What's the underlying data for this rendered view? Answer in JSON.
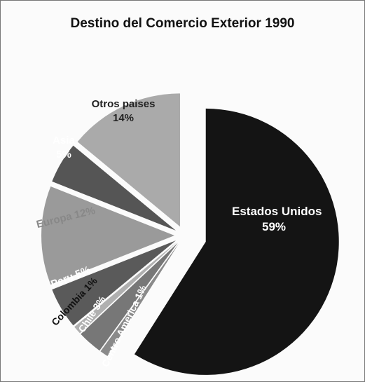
{
  "chart_data": {
    "type": "pie",
    "title": "Destino del Comercio Exterior 1990",
    "categories": [
      "Estados Unidos",
      "Centro America",
      "Chile",
      "Colombia",
      "Peru",
      "Europa",
      "Asia",
      "Otros paises"
    ],
    "values": [
      59,
      1,
      3,
      1,
      5,
      12,
      5,
      14
    ],
    "value_labels": [
      "59%",
      "1%",
      "3%",
      "1%",
      "5%",
      "12%",
      "5%",
      "14%"
    ],
    "colors": [
      "#141414",
      "#8a8a8a",
      "#777777",
      "#b0b0b0",
      "#5a5a5a",
      "#9a9a9a",
      "#555555",
      "#aaaaaa"
    ]
  }
}
